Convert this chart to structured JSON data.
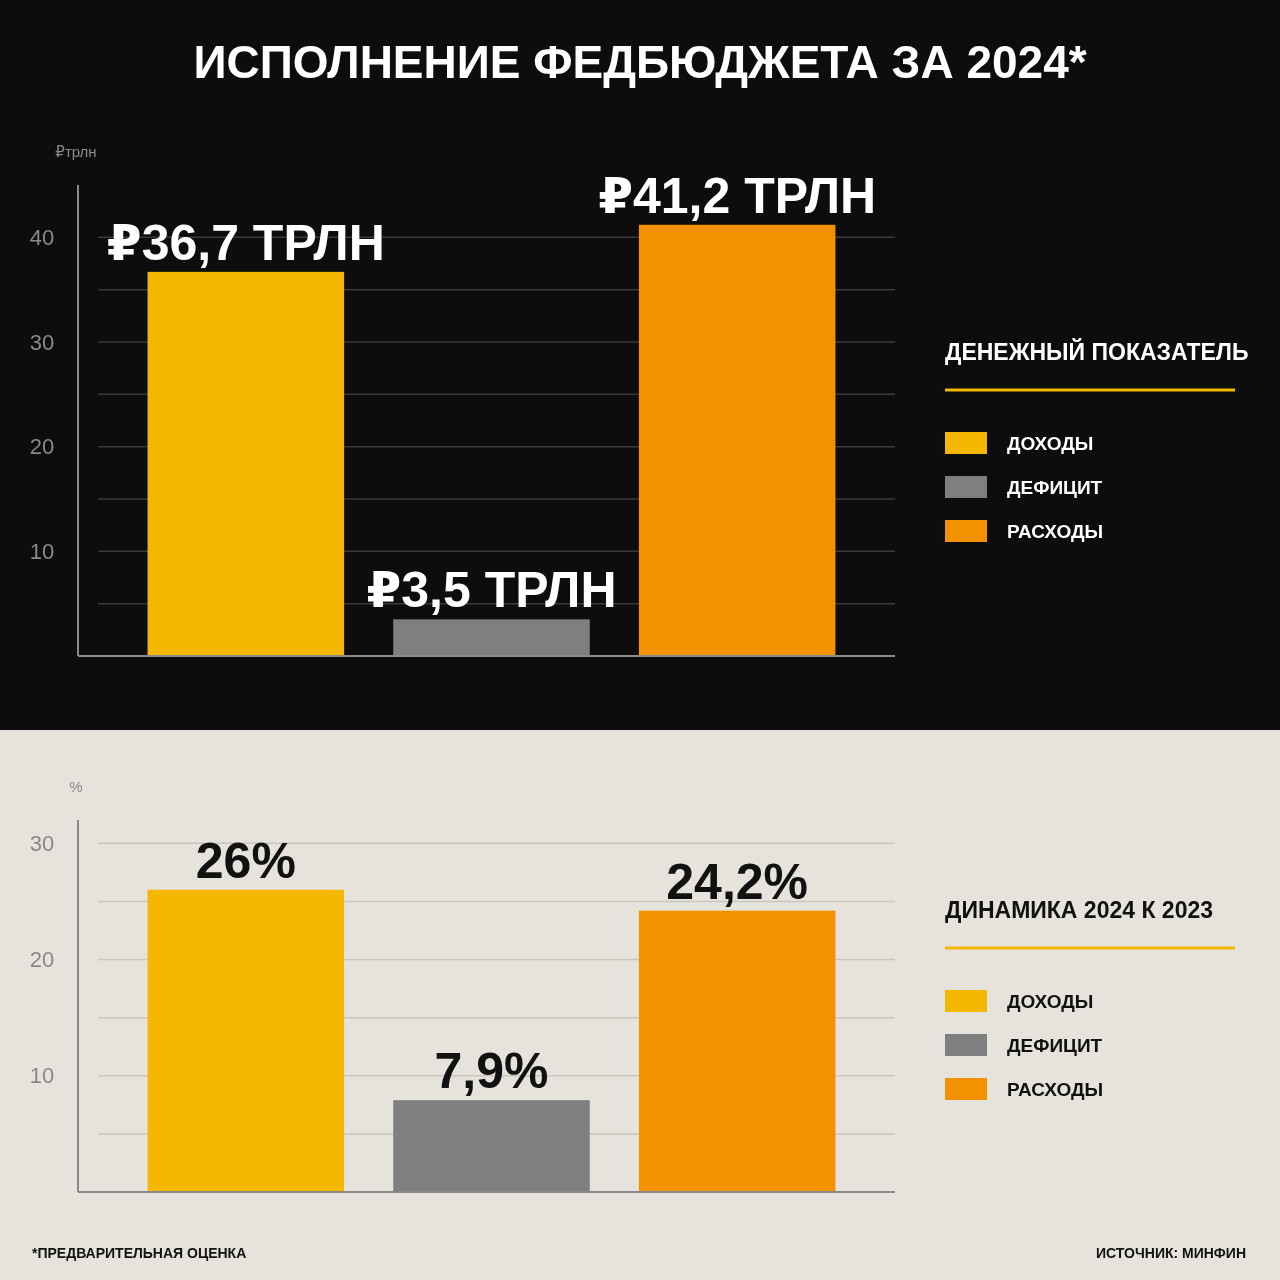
{
  "chart_data": [
    {
      "type": "bar",
      "title": "ИСПОЛНЕНИЕ ФЕДБЮДЖЕТА ЗА 2024*",
      "ylabel": "₽трлн",
      "legend_title": "ДЕНЕЖНЫЙ ПОКАЗАТЕЛЬ",
      "categories": [
        null,
        null,
        null
      ],
      "series": [
        {
          "name": "ДОХОДЫ",
          "color": "#f5b800",
          "values": [
            36.7,
            null,
            null
          ],
          "value_labels": [
            "₽36,7 ТРЛН",
            null,
            null
          ]
        },
        {
          "name": "ДЕФИЦИТ",
          "color": "#7f7f7f",
          "values": [
            null,
            3.5,
            null
          ],
          "value_labels": [
            null,
            "₽3,5 ТРЛН",
            null
          ]
        },
        {
          "name": "РАСХОДЫ",
          "color": "#f39200",
          "values": [
            null,
            null,
            41.2
          ],
          "value_labels": [
            null,
            null,
            "₽41,2 ТРЛН"
          ]
        }
      ],
      "ylim": [
        0,
        45
      ],
      "yticks": [
        {
          "value": 5,
          "label": null
        },
        10,
        {
          "value": 15,
          "label": null
        },
        20,
        {
          "value": 25,
          "label": null
        },
        30,
        {
          "value": 35,
          "label": null
        },
        40
      ],
      "grid": "y",
      "legend": "right"
    },
    {
      "type": "bar",
      "ylabel": "%",
      "legend_title": "ДИНАМИКА 2024 К 2023",
      "categories": [
        null,
        null,
        null
      ],
      "series": [
        {
          "name": "ДОХОДЫ",
          "color": "#f5b800",
          "values": [
            26,
            null,
            null
          ],
          "value_labels": [
            "26%",
            null,
            null
          ]
        },
        {
          "name": "ДЕФИЦИТ",
          "color": "#7f7f7f",
          "values": [
            null,
            7.9,
            null
          ],
          "value_labels": [
            null,
            "7,9%",
            null
          ]
        },
        {
          "name": "РАСХОДЫ",
          "color": "#f39200",
          "values": [
            null,
            null,
            24.2
          ],
          "value_labels": [
            null,
            null,
            "24,2%"
          ]
        }
      ],
      "ylim": [
        0,
        32
      ],
      "yticks": [
        {
          "value": 5,
          "label": null
        },
        10,
        {
          "value": 15,
          "label": null
        },
        20,
        {
          "value": 25,
          "label": null
        },
        30
      ],
      "grid": "y",
      "legend": "right",
      "annotations": [
        "*ПРЕДВАРИТЕЛЬНАЯ ОЦЕНКА",
        "ИСТОЧНИК: МИНФИН"
      ]
    }
  ]
}
